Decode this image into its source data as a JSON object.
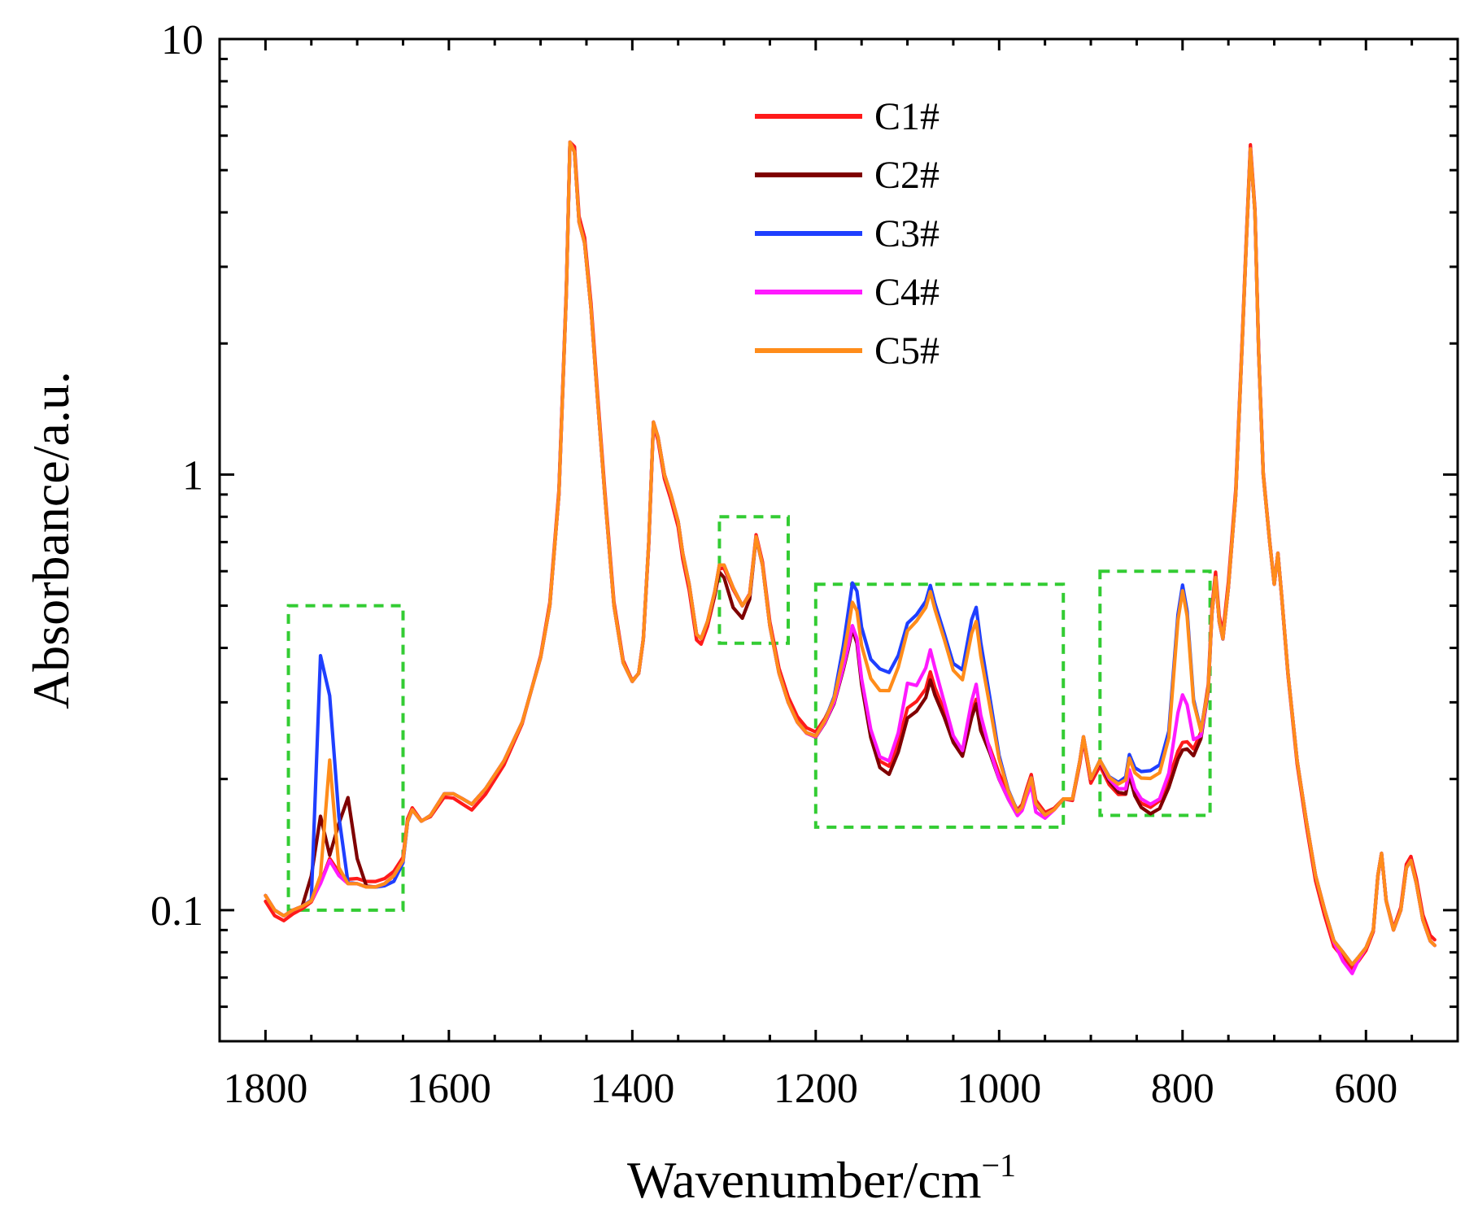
{
  "chart_data": {
    "type": "line",
    "xlabel": "Wavenumber/cm",
    "xlabel_superscript": "−1",
    "ylabel": "Absorbance/a.u.",
    "x_reversed": true,
    "y_scale": "log",
    "xlim": [
      1850,
      500
    ],
    "ylim": [
      0.05,
      10
    ],
    "x_ticks": [
      {
        "value": 1800,
        "label": "1800"
      },
      {
        "value": 1600,
        "label": "1600"
      },
      {
        "value": 1400,
        "label": "1400"
      },
      {
        "value": 1200,
        "label": "1200"
      },
      {
        "value": 1000,
        "label": "1000"
      },
      {
        "value": 800,
        "label": "800"
      },
      {
        "value": 600,
        "label": "600"
      }
    ],
    "y_ticks": [
      {
        "value": 0.1,
        "label": "0.1"
      },
      {
        "value": 1,
        "label": "1"
      },
      {
        "value": 10,
        "label": "10"
      }
    ],
    "legend": {
      "position": "top-center"
    },
    "base_spectrum": [
      [
        1800,
        0.108
      ],
      [
        1790,
        0.1
      ],
      [
        1780,
        0.097
      ],
      [
        1770,
        0.1
      ],
      [
        1760,
        0.102
      ],
      [
        1750,
        0.105
      ],
      [
        1740,
        0.115
      ],
      [
        1730,
        0.13
      ],
      [
        1720,
        0.12
      ],
      [
        1710,
        0.115
      ],
      [
        1700,
        0.115
      ],
      [
        1690,
        0.113
      ],
      [
        1680,
        0.113
      ],
      [
        1670,
        0.115
      ],
      [
        1660,
        0.12
      ],
      [
        1650,
        0.13
      ],
      [
        1645,
        0.16
      ],
      [
        1640,
        0.17
      ],
      [
        1630,
        0.16
      ],
      [
        1620,
        0.165
      ],
      [
        1605,
        0.185
      ],
      [
        1595,
        0.185
      ],
      [
        1585,
        0.18
      ],
      [
        1575,
        0.175
      ],
      [
        1560,
        0.19
      ],
      [
        1540,
        0.22
      ],
      [
        1520,
        0.27
      ],
      [
        1500,
        0.38
      ],
      [
        1490,
        0.5
      ],
      [
        1480,
        0.9
      ],
      [
        1472,
        2.6
      ],
      [
        1468,
        5.8
      ],
      [
        1463,
        5.5
      ],
      [
        1458,
        3.8
      ],
      [
        1452,
        3.4
      ],
      [
        1445,
        2.4
      ],
      [
        1438,
        1.5
      ],
      [
        1430,
        0.9
      ],
      [
        1420,
        0.5
      ],
      [
        1410,
        0.37
      ],
      [
        1400,
        0.335
      ],
      [
        1393,
        0.35
      ],
      [
        1388,
        0.42
      ],
      [
        1382,
        0.7
      ],
      [
        1377,
        1.32
      ],
      [
        1372,
        1.22
      ],
      [
        1365,
        1.0
      ],
      [
        1358,
        0.9
      ],
      [
        1350,
        0.78
      ],
      [
        1345,
        0.66
      ],
      [
        1338,
        0.56
      ],
      [
        1330,
        0.43
      ],
      [
        1325,
        0.42
      ],
      [
        1318,
        0.46
      ],
      [
        1310,
        0.54
      ],
      [
        1305,
        0.62
      ],
      [
        1300,
        0.62
      ],
      [
        1290,
        0.55
      ],
      [
        1280,
        0.5
      ],
      [
        1272,
        0.53
      ],
      [
        1265,
        0.72
      ],
      [
        1258,
        0.62
      ],
      [
        1250,
        0.45
      ],
      [
        1240,
        0.35
      ],
      [
        1230,
        0.3
      ],
      [
        1220,
        0.27
      ],
      [
        1210,
        0.255
      ],
      [
        1200,
        0.25
      ],
      [
        1190,
        0.27
      ],
      [
        1180,
        0.3
      ],
      [
        1170,
        0.36
      ],
      [
        1165,
        0.4
      ],
      [
        1160,
        0.45
      ],
      [
        1155,
        0.42
      ],
      [
        1150,
        0.34
      ],
      [
        1140,
        0.26
      ],
      [
        1130,
        0.225
      ],
      [
        1120,
        0.22
      ],
      [
        1110,
        0.25
      ],
      [
        1100,
        0.3
      ],
      [
        1090,
        0.31
      ],
      [
        1080,
        0.33
      ],
      [
        1075,
        0.36
      ],
      [
        1070,
        0.33
      ],
      [
        1060,
        0.29
      ],
      [
        1050,
        0.25
      ],
      [
        1040,
        0.23
      ],
      [
        1030,
        0.28
      ],
      [
        1025,
        0.3
      ],
      [
        1020,
        0.26
      ],
      [
        1010,
        0.23
      ],
      [
        1000,
        0.2
      ],
      [
        990,
        0.18
      ],
      [
        980,
        0.165
      ],
      [
        975,
        0.17
      ],
      [
        970,
        0.185
      ],
      [
        965,
        0.2
      ],
      [
        960,
        0.175
      ],
      [
        950,
        0.165
      ],
      [
        940,
        0.17
      ],
      [
        930,
        0.18
      ],
      [
        920,
        0.18
      ],
      [
        912,
        0.22
      ],
      [
        908,
        0.25
      ],
      [
        905,
        0.23
      ],
      [
        900,
        0.2
      ],
      [
        895,
        0.21
      ],
      [
        890,
        0.22
      ],
      [
        880,
        0.2
      ],
      [
        870,
        0.19
      ],
      [
        862,
        0.19
      ],
      [
        858,
        0.21
      ],
      [
        852,
        0.19
      ],
      [
        845,
        0.18
      ],
      [
        835,
        0.175
      ],
      [
        825,
        0.18
      ],
      [
        815,
        0.2
      ],
      [
        805,
        0.23
      ],
      [
        800,
        0.24
      ],
      [
        795,
        0.24
      ],
      [
        788,
        0.23
      ],
      [
        780,
        0.25
      ],
      [
        772,
        0.32
      ],
      [
        768,
        0.48
      ],
      [
        764,
        0.58
      ],
      [
        760,
        0.46
      ],
      [
        756,
        0.42
      ],
      [
        750,
        0.55
      ],
      [
        742,
        0.9
      ],
      [
        735,
        2.0
      ],
      [
        730,
        3.6
      ],
      [
        726,
        5.6
      ],
      [
        721,
        4.0
      ],
      [
        717,
        1.9
      ],
      [
        712,
        1.0
      ],
      [
        705,
        0.7
      ],
      [
        700,
        0.56
      ],
      [
        696,
        0.66
      ],
      [
        692,
        0.53
      ],
      [
        685,
        0.35
      ],
      [
        675,
        0.22
      ],
      [
        665,
        0.16
      ],
      [
        655,
        0.12
      ],
      [
        645,
        0.1
      ],
      [
        635,
        0.085
      ],
      [
        625,
        0.08
      ],
      [
        615,
        0.075
      ],
      [
        608,
        0.078
      ],
      [
        600,
        0.082
      ],
      [
        592,
        0.09
      ],
      [
        587,
        0.12
      ],
      [
        583,
        0.135
      ],
      [
        578,
        0.105
      ],
      [
        570,
        0.09
      ],
      [
        562,
        0.1
      ],
      [
        556,
        0.125
      ],
      [
        551,
        0.13
      ],
      [
        545,
        0.115
      ],
      [
        538,
        0.095
      ],
      [
        530,
        0.085
      ],
      [
        525,
        0.083
      ]
    ],
    "series": [
      {
        "name": "C1#",
        "color": "#ff1a1a"
      },
      {
        "name": "C2#",
        "color": "#7f0000"
      },
      {
        "name": "C3#",
        "color": "#1f3fff"
      },
      {
        "name": "C4#",
        "color": "#ff1aff"
      },
      {
        "name": "C5#",
        "color": "#ff8c1a"
      }
    ],
    "highlighted_regions": [
      {
        "x": [
          1775,
          1650
        ],
        "y": [
          0.1,
          0.5
        ],
        "color": "#33cc33"
      },
      {
        "x": [
          1305,
          1230
        ],
        "y": [
          0.41,
          0.8
        ],
        "color": "#33cc33"
      },
      {
        "x": [
          1200,
          930
        ],
        "y": [
          0.155,
          0.56
        ],
        "color": "#33cc33"
      },
      {
        "x": [
          890,
          770
        ],
        "y": [
          0.165,
          0.6
        ],
        "color": "#33cc33"
      }
    ]
  }
}
